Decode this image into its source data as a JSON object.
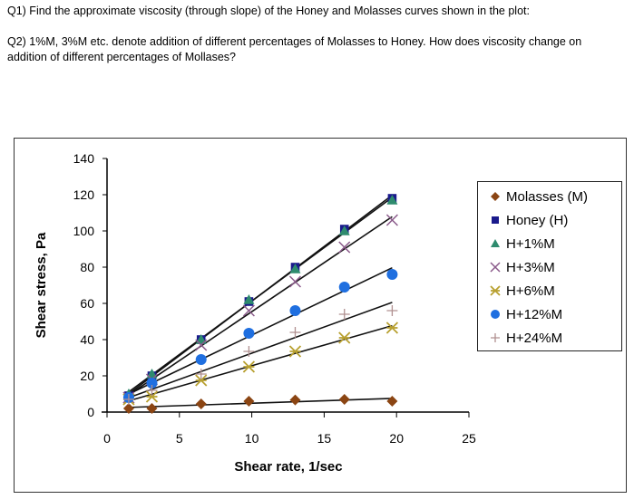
{
  "questions": {
    "q1": "Q1) Find the approximate viscosity (through slope) of the Honey and Molasses curves shown in the plot:",
    "q2": "Q2) 1%M, 3%M etc. denote addition of different percentages of Molasses to Honey. How does viscosity change on addition of different percentages of Mollases?"
  },
  "chart_data": {
    "type": "scatter",
    "xlabel": "Shear rate, 1/sec",
    "ylabel": "Shear stress, Pa",
    "xlim": [
      0,
      25
    ],
    "ylim": [
      0,
      140
    ],
    "xticks": [
      "0",
      "5",
      "10",
      "15",
      "20",
      "25"
    ],
    "yticks": [
      "0",
      "20",
      "40",
      "60",
      "80",
      "100",
      "120",
      "140"
    ],
    "grid": false,
    "legend": "right",
    "trendlines": "linear",
    "x": [
      1.5,
      3.1,
      6.5,
      9.8,
      13.0,
      16.4,
      19.7
    ],
    "series": [
      {
        "name": "Molasses (M)",
        "marker": "diamond",
        "color": "#8B4513",
        "values": [
          2,
          2,
          4.5,
          6,
          6.7,
          7,
          6
        ]
      },
      {
        "name": "Honey (H)",
        "marker": "square",
        "color": "#1a1a8c",
        "values": [
          9,
          20,
          40,
          61,
          80,
          101,
          118
        ]
      },
      {
        "name": "H+1%M",
        "marker": "triangle",
        "color": "#2e8b6e",
        "values": [
          10,
          21,
          40,
          62,
          79,
          100,
          117
        ]
      },
      {
        "name": "H+3%M",
        "marker": "x",
        "color": "#8a5a8a",
        "values": [
          8,
          18,
          37,
          56,
          72,
          91,
          106
        ]
      },
      {
        "name": "H+6%M",
        "marker": "star",
        "color": "#b8a030",
        "values": [
          7,
          8.5,
          17.5,
          25,
          33.5,
          41,
          46.5
        ]
      },
      {
        "name": "H+12%M",
        "marker": "circle",
        "color": "#1f6fe0",
        "values": [
          8,
          16,
          29,
          43.5,
          56,
          69,
          76
        ]
      },
      {
        "name": "H+24%M",
        "marker": "plus",
        "color": "#b09090",
        "values": [
          7,
          12,
          21,
          33.5,
          44,
          54,
          56
        ]
      }
    ]
  }
}
